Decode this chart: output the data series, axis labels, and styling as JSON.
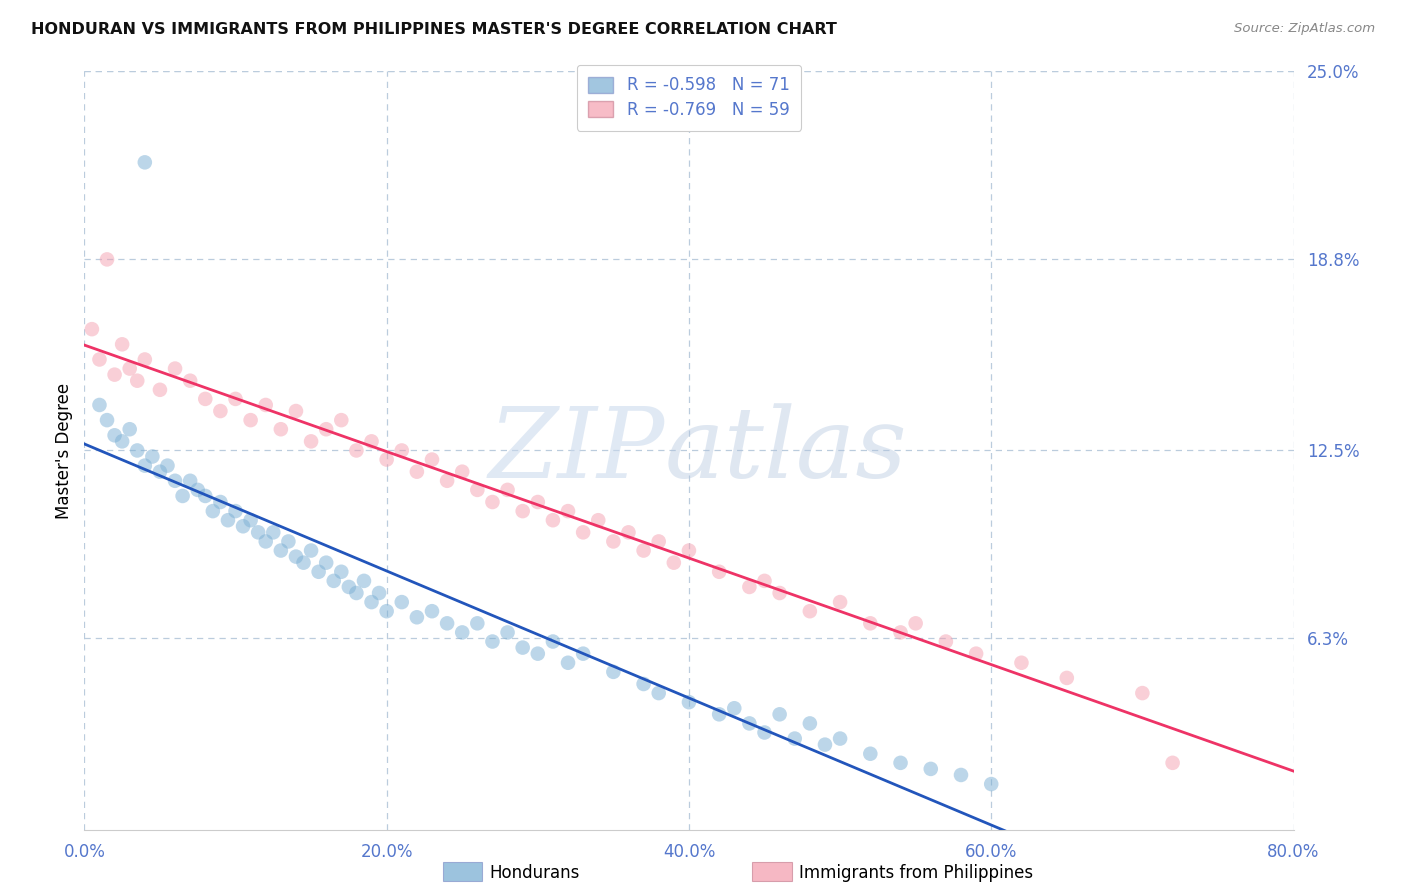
{
  "title": "HONDURAN VS IMMIGRANTS FROM PHILIPPINES MASTER'S DEGREE CORRELATION CHART",
  "source": "Source: ZipAtlas.com",
  "ylabel": "Master's Degree",
  "right_ytick_vals": [
    25.0,
    18.8,
    12.5,
    6.3
  ],
  "right_ytick_labels": [
    "25.0%",
    "18.8%",
    "12.5%",
    "6.3%"
  ],
  "xtick_vals": [
    0.0,
    20.0,
    40.0,
    60.0,
    80.0
  ],
  "xtick_labels": [
    "0.0%",
    "20.0%",
    "40.0%",
    "60.0%",
    "80.0%"
  ],
  "xlim": [
    0.0,
    80.0
  ],
  "ylim": [
    0.0,
    25.0
  ],
  "blue_color": "#7BAFD4",
  "pink_color": "#F4A0B0",
  "blue_line_color": "#2255BB",
  "pink_line_color": "#EE3366",
  "blue_label": "Hondurans",
  "pink_label": "Immigrants from Philippines",
  "blue_R": "-0.598",
  "blue_N": "71",
  "pink_R": "-0.769",
  "pink_N": "59",
  "axis_label_color": "#5577CC",
  "grid_color": "#BBCCDD",
  "title_color": "#111111",
  "source_color": "#888888",
  "background_color": "#FFFFFF",
  "figsize": [
    14.06,
    8.92
  ],
  "dpi": 100,
  "blue_x": [
    4.0,
    1.0,
    1.5,
    2.0,
    2.5,
    3.0,
    3.5,
    4.0,
    4.5,
    5.0,
    5.5,
    6.0,
    6.5,
    7.0,
    7.5,
    8.0,
    8.5,
    9.0,
    9.5,
    10.0,
    10.5,
    11.0,
    11.5,
    12.0,
    12.5,
    13.0,
    13.5,
    14.0,
    14.5,
    15.0,
    15.5,
    16.0,
    16.5,
    17.0,
    17.5,
    18.0,
    18.5,
    19.0,
    19.5,
    20.0,
    21.0,
    22.0,
    23.0,
    24.0,
    25.0,
    26.0,
    27.0,
    28.0,
    29.0,
    30.0,
    31.0,
    32.0,
    33.0,
    35.0,
    37.0,
    38.0,
    40.0,
    42.0,
    43.0,
    44.0,
    45.0,
    46.0,
    47.0,
    48.0,
    49.0,
    50.0,
    52.0,
    54.0,
    56.0,
    58.0,
    60.0
  ],
  "blue_y": [
    22.0,
    14.0,
    13.5,
    13.0,
    12.8,
    13.2,
    12.5,
    12.0,
    12.3,
    11.8,
    12.0,
    11.5,
    11.0,
    11.5,
    11.2,
    11.0,
    10.5,
    10.8,
    10.2,
    10.5,
    10.0,
    10.2,
    9.8,
    9.5,
    9.8,
    9.2,
    9.5,
    9.0,
    8.8,
    9.2,
    8.5,
    8.8,
    8.2,
    8.5,
    8.0,
    7.8,
    8.2,
    7.5,
    7.8,
    7.2,
    7.5,
    7.0,
    7.2,
    6.8,
    6.5,
    6.8,
    6.2,
    6.5,
    6.0,
    5.8,
    6.2,
    5.5,
    5.8,
    5.2,
    4.8,
    4.5,
    4.2,
    3.8,
    4.0,
    3.5,
    3.2,
    3.8,
    3.0,
    3.5,
    2.8,
    3.0,
    2.5,
    2.2,
    2.0,
    1.8,
    1.5
  ],
  "pink_x": [
    0.5,
    1.0,
    1.5,
    2.0,
    2.5,
    3.0,
    3.5,
    4.0,
    5.0,
    6.0,
    7.0,
    8.0,
    9.0,
    10.0,
    11.0,
    12.0,
    13.0,
    14.0,
    15.0,
    16.0,
    17.0,
    18.0,
    19.0,
    20.0,
    21.0,
    22.0,
    23.0,
    24.0,
    25.0,
    26.0,
    27.0,
    28.0,
    29.0,
    30.0,
    31.0,
    32.0,
    33.0,
    34.0,
    35.0,
    36.0,
    37.0,
    38.0,
    39.0,
    40.0,
    42.0,
    44.0,
    45.0,
    46.0,
    48.0,
    50.0,
    52.0,
    54.0,
    55.0,
    57.0,
    59.0,
    62.0,
    65.0,
    70.0,
    72.0
  ],
  "pink_y": [
    16.5,
    15.5,
    18.8,
    15.0,
    16.0,
    15.2,
    14.8,
    15.5,
    14.5,
    15.2,
    14.8,
    14.2,
    13.8,
    14.2,
    13.5,
    14.0,
    13.2,
    13.8,
    12.8,
    13.2,
    13.5,
    12.5,
    12.8,
    12.2,
    12.5,
    11.8,
    12.2,
    11.5,
    11.8,
    11.2,
    10.8,
    11.2,
    10.5,
    10.8,
    10.2,
    10.5,
    9.8,
    10.2,
    9.5,
    9.8,
    9.2,
    9.5,
    8.8,
    9.2,
    8.5,
    8.0,
    8.2,
    7.8,
    7.2,
    7.5,
    6.8,
    6.5,
    6.8,
    6.2,
    5.8,
    5.5,
    5.0,
    4.5,
    2.2
  ]
}
